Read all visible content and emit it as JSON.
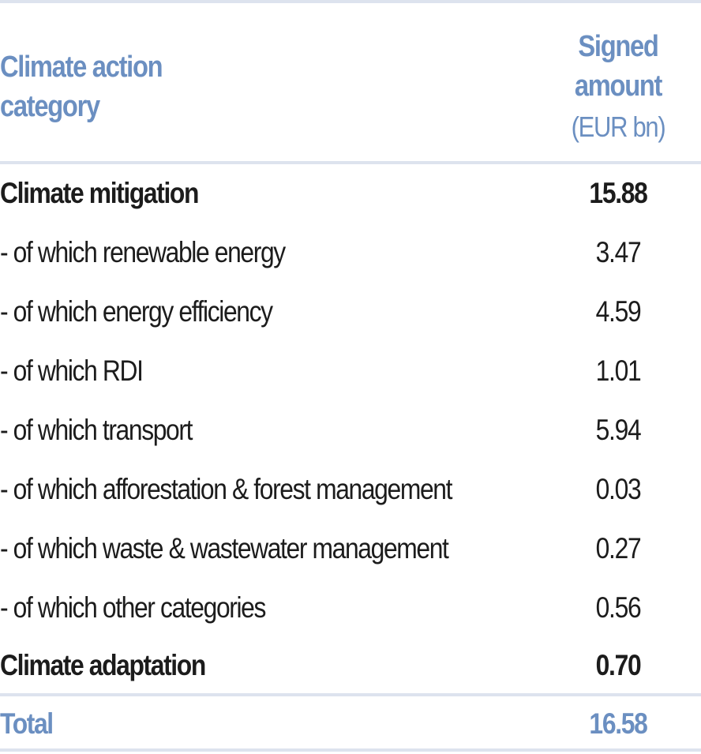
{
  "table": {
    "header": {
      "category_line1": "Climate action",
      "category_line2": "category",
      "amount_line1": "Signed",
      "amount_line2": "amount",
      "amount_unit": "(EUR bn)"
    },
    "rows": [
      {
        "label": "Climate mitigation",
        "value": "15.88"
      },
      {
        "label": "- of which renewable energy",
        "value": "3.47"
      },
      {
        "label": "- of which energy efficiency",
        "value": "4.59"
      },
      {
        "label": "- of which RDI",
        "value": "1.01"
      },
      {
        "label": "- of which transport",
        "value": "5.94"
      },
      {
        "label": "- of which afforestation & forest management",
        "value": "0.03"
      },
      {
        "label": "- of which waste & wastewater management",
        "value": "0.27"
      },
      {
        "label": "- of which other categories",
        "value": "0.56"
      },
      {
        "label": "Climate adaptation",
        "value": "0.70"
      }
    ],
    "total": {
      "label": "Total",
      "value": "16.58"
    }
  },
  "colors": {
    "accent": "#6b8fc1",
    "rule": "#dde3ee",
    "text": "#1c1c1c"
  }
}
